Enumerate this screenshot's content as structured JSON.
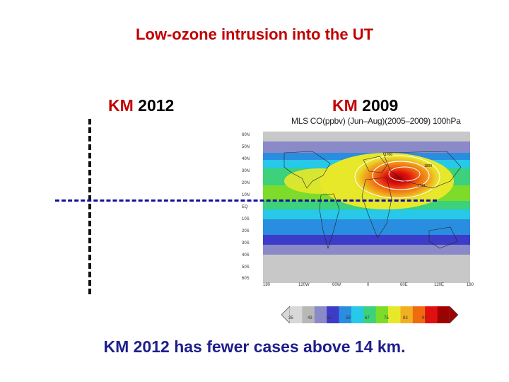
{
  "title": "Low-ozone intrusion into the UT",
  "labels": {
    "left_prefix": "KM ",
    "left_year": "2012",
    "right_prefix": "KM ",
    "right_year": "2009"
  },
  "map": {
    "title": "MLS CO(ppbv) (Jun–Aug)(2005–2009) 100hPa",
    "lat_labels": [
      "60N",
      "50N",
      "40N",
      "30N",
      "20N",
      "10N",
      "EQ",
      "10S",
      "20S",
      "30S",
      "40S",
      "50S",
      "60S"
    ],
    "lon_labels": [
      "180",
      "120W",
      "60W",
      "0",
      "60E",
      "120E",
      "180"
    ],
    "contour_labels": [
      "1700",
      "1800",
      "1700"
    ],
    "colorbar_ticks": [
      "35",
      "43",
      "51",
      "59",
      "67",
      "75",
      "83",
      "91",
      "99"
    ],
    "colorbar_colors": [
      "#d8d8d8",
      "#b8b8b8",
      "#8a8ac8",
      "#3c3cc8",
      "#2a8ee0",
      "#27c8e8",
      "#3cd17a",
      "#7ddc2a",
      "#e8e82a",
      "#f0b020",
      "#f06a10",
      "#e01010",
      "#a00000"
    ]
  },
  "caption": "KM 2012 has fewer cases above 14 km."
}
